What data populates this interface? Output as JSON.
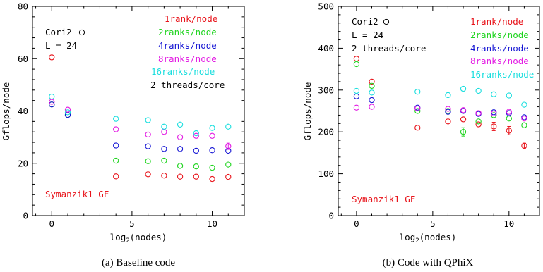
{
  "chart_data": [
    {
      "type": "scatter",
      "caption": "(a)  Baseline code",
      "xlabel": "log2(nodes)",
      "ylabel": "Gflops/node",
      "xlim": [
        -1.2,
        12.0
      ],
      "ylim": [
        0,
        80
      ],
      "xticks": [
        0,
        5,
        10
      ],
      "yticks": [
        0,
        20,
        40,
        60,
        80
      ],
      "annotations": [
        "Cori2",
        "L = 24",
        "2 threads/core",
        "Symanzik1 GF"
      ],
      "legend_marker": "circle",
      "legend_entries": [
        "1rank/node",
        "2ranks/node",
        "4ranks/node",
        "8ranks/node",
        "16ranks/node"
      ],
      "series": [
        {
          "name": "1rank/node",
          "color": "#e8141b",
          "x": [
            0,
            4,
            6,
            7,
            8,
            9,
            10,
            11
          ],
          "y": [
            60.5,
            15.0,
            15.8,
            15.3,
            14.9,
            14.9,
            14.0,
            14.8
          ],
          "err": [
            0,
            0,
            0,
            0,
            0,
            0,
            0,
            0
          ]
        },
        {
          "name": "2ranks/node",
          "color": "#1fd41f",
          "x": [
            0,
            1,
            4,
            6,
            7,
            8,
            9,
            10,
            11
          ],
          "y": [
            42.5,
            38.5,
            21.0,
            20.8,
            21.0,
            19.0,
            18.8,
            18.3,
            19.5
          ],
          "err": [
            0,
            0,
            0,
            0,
            0,
            0,
            0,
            0,
            0
          ]
        },
        {
          "name": "4ranks/node",
          "color": "#1717d4",
          "x": [
            0,
            1,
            4,
            6,
            7,
            8,
            9,
            10,
            11
          ],
          "y": [
            42.5,
            38.5,
            26.8,
            26.5,
            25.5,
            25.5,
            24.8,
            25.0,
            24.8
          ],
          "err": [
            0,
            0,
            0,
            0,
            0,
            0,
            0,
            0,
            0
          ]
        },
        {
          "name": "8ranks/node",
          "color": "#e31ce3",
          "x": [
            0,
            1,
            4,
            6,
            7,
            8,
            9,
            10,
            11
          ],
          "y": [
            43.5,
            40.5,
            33.0,
            31.0,
            32.0,
            30.0,
            30.5,
            30.5,
            26.5
          ],
          "err": [
            0,
            0,
            0,
            0,
            0,
            0,
            0,
            0,
            1.2
          ]
        },
        {
          "name": "16ranks/node",
          "color": "#19dede",
          "x": [
            0,
            1,
            4,
            6,
            7,
            8,
            9,
            10,
            11
          ],
          "y": [
            45.5,
            39.5,
            37.0,
            36.5,
            34.0,
            34.8,
            31.5,
            33.5,
            34.0
          ],
          "err": [
            0,
            0,
            0,
            0,
            0,
            0,
            0,
            0,
            0
          ]
        }
      ]
    },
    {
      "type": "scatter",
      "caption": "(b)  Code with QPhiX",
      "xlabel": "log2(nodes)",
      "ylabel": "Gflops/node",
      "xlim": [
        -1.2,
        12.0
      ],
      "ylim": [
        0,
        500
      ],
      "xticks": [
        0,
        5,
        10
      ],
      "yticks": [
        0,
        100,
        200,
        300,
        400,
        500
      ],
      "annotations": [
        "Cori2",
        "L = 24",
        "2 threads/core",
        "Symanzik1 GF"
      ],
      "legend_marker": "circle",
      "legend_entries": [
        "1rank/node",
        "2ranks/node",
        "4ranks/node",
        "8ranks/node",
        "16ranks/node"
      ],
      "series": [
        {
          "name": "1rank/node",
          "color": "#e8141b",
          "x": [
            0,
            1,
            4,
            6,
            7,
            8,
            9,
            10,
            11
          ],
          "y": [
            375,
            320,
            210,
            225,
            230,
            218,
            213,
            203,
            167
          ],
          "err": [
            0,
            0,
            0,
            0,
            0,
            0,
            10,
            10,
            6
          ]
        },
        {
          "name": "2ranks/node",
          "color": "#1fd41f",
          "x": [
            0,
            1,
            4,
            6,
            7,
            8,
            9,
            10,
            11
          ],
          "y": [
            362,
            310,
            250,
            250,
            200,
            225,
            240,
            232,
            216
          ],
          "err": [
            0,
            0,
            0,
            0,
            10,
            0,
            0,
            0,
            0
          ]
        },
        {
          "name": "4ranks/node",
          "color": "#1717d4",
          "x": [
            0,
            1,
            4,
            6,
            7,
            8,
            9,
            10,
            11
          ],
          "y": [
            285,
            276,
            258,
            248,
            250,
            243,
            247,
            245,
            235
          ],
          "err": [
            0,
            0,
            0,
            0,
            0,
            0,
            0,
            0,
            0
          ]
        },
        {
          "name": "8ranks/node",
          "color": "#e31ce3",
          "x": [
            0,
            1,
            4,
            6,
            7,
            8,
            9,
            10,
            11
          ],
          "y": [
            258,
            260,
            256,
            255,
            252,
            245,
            244,
            248,
            232
          ],
          "err": [
            0,
            0,
            0,
            0,
            0,
            0,
            0,
            0,
            0
          ]
        },
        {
          "name": "16ranks/node",
          "color": "#19dede",
          "x": [
            0,
            1,
            4,
            6,
            7,
            8,
            9,
            10,
            11
          ],
          "y": [
            298,
            294,
            296,
            288,
            303,
            298,
            290,
            287,
            265
          ],
          "err": [
            0,
            0,
            0,
            0,
            0,
            0,
            0,
            0,
            0
          ]
        }
      ]
    }
  ]
}
